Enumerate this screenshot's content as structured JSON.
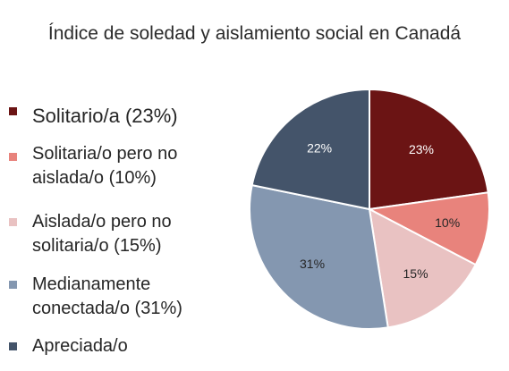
{
  "chart_data": {
    "type": "pie",
    "title": "Índice de soledad y aislamiento social en Canadá",
    "slices": [
      {
        "label": "Solitario/a (23%)",
        "value": 23,
        "data_label": "23%",
        "color": "#6b1414",
        "label_color": "#ffffff"
      },
      {
        "label": "Solitaria/o pero no aislada/o (10%)",
        "value": 10,
        "data_label": "10%",
        "color": "#e8837c",
        "label_color": "#262626"
      },
      {
        "label": "Aislada/o pero no solitaria/o (15%)",
        "value": 15,
        "data_label": "15%",
        "color": "#e9c2c2",
        "label_color": "#262626"
      },
      {
        "label": "Medianamente conectada/o (31%)",
        "value": 31,
        "data_label": "31%",
        "color": "#8497b0",
        "label_color": "#262626"
      },
      {
        "label": "Apreciada/o",
        "value": 22,
        "data_label": "22%",
        "color": "#44546a",
        "label_color": "#ffffff"
      }
    ],
    "legend_position": "left",
    "start_angle": "top",
    "direction": "clockwise"
  }
}
